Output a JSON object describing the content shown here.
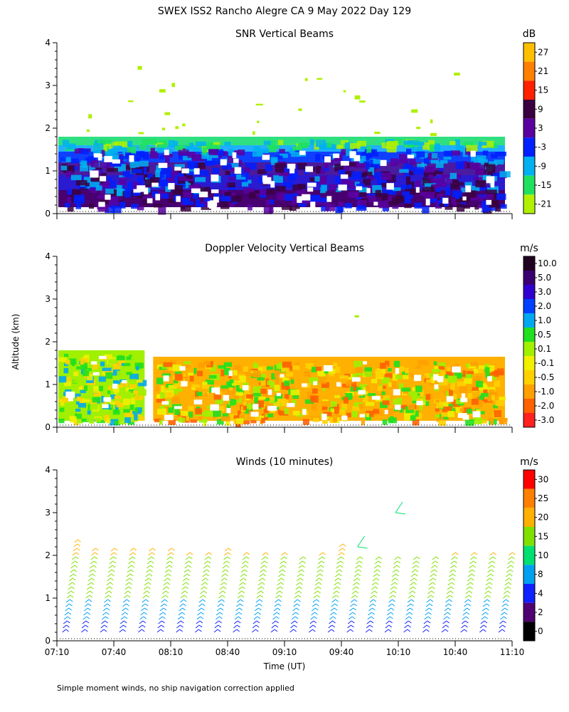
{
  "title": "SWEX ISS2 Rancho Alegre CA   9 May 2022 Day 129",
  "y_axis_label": "Altitude (km)",
  "x_axis_label": "Time (UT)",
  "footnote": "Simple moment winds, no ship navigation correction applied",
  "time_ticks": [
    "07:10",
    "07:40",
    "08:10",
    "08:40",
    "09:10",
    "09:40",
    "10:10",
    "10:40",
    "11:10"
  ],
  "chart_data": [
    {
      "type": "heatmap",
      "title": "SNR Vertical Beams",
      "units": "dB",
      "xlabel": "Time (UT)",
      "ylabel": "Altitude (km)",
      "xlim": [
        "07:10",
        "11:10"
      ],
      "ylim": [
        0,
        4
      ],
      "yticks": [
        "0",
        "1",
        "2",
        "3",
        "4"
      ],
      "colorbar": {
        "labels": [
          "27",
          "21",
          "15",
          "9",
          "3",
          "-3",
          "-9",
          "-15",
          "-21"
        ],
        "colors": [
          "#ffbf00",
          "#ff8000",
          "#ff2000",
          "#3a0040",
          "#5a00a0",
          "#0020ff",
          "#00b0f0",
          "#20e060",
          "#b0f000"
        ]
      },
      "layers": [
        {
          "altitude_km": [
            0.15,
            0.55
          ],
          "value_db": 9,
          "color": "#480070"
        },
        {
          "altitude_km": [
            0.55,
            0.9
          ],
          "value_db": 3,
          "color": "#2a1ad0"
        },
        {
          "altitude_km": [
            0.9,
            1.2
          ],
          "value_db": 3,
          "color": "#4a1aa0"
        },
        {
          "altitude_km": [
            1.2,
            1.45
          ],
          "value_db": -3,
          "color": "#1040ff"
        },
        {
          "altitude_km": [
            1.45,
            1.6
          ],
          "value_db": -9,
          "color": "#20b0ff"
        },
        {
          "altitude_km": [
            1.6,
            1.8
          ],
          "value_db": -15,
          "color": "#30e080"
        }
      ],
      "speckles_above_km": [
        1.8,
        3.5
      ]
    },
    {
      "type": "heatmap",
      "title": "Doppler Velocity Vertical Beams",
      "units": "m/s",
      "xlabel": "Time (UT)",
      "ylabel": "Altitude (km)",
      "xlim": [
        "07:10",
        "11:10"
      ],
      "ylim": [
        0,
        4
      ],
      "yticks": [
        "0",
        "1",
        "2",
        "3",
        "4"
      ],
      "colorbar": {
        "labels": [
          "10.0",
          "5.0",
          "3.0",
          "2.0",
          "1.0",
          "0.5",
          "0.1",
          "-0.1",
          "-0.5",
          "-1.0",
          "-2.0",
          "-3.0"
        ],
        "colors": [
          "#200020",
          "#3a0070",
          "#3000d0",
          "#0040ff",
          "#00a8f0",
          "#20e020",
          "#a0f000",
          "#f0f000",
          "#ffd000",
          "#ffa000",
          "#ff6000",
          "#ff2020"
        ]
      },
      "regions": [
        {
          "time": [
            "07:10",
            "08:00"
          ],
          "altitude_km": [
            0.15,
            1.8
          ],
          "dominant_value": 0.1,
          "color": "#a0f000"
        },
        {
          "time": [
            "08:00",
            "11:10"
          ],
          "altitude_km": [
            0.15,
            1.65
          ],
          "dominant_value": -0.5,
          "color": "#ffb000"
        }
      ]
    },
    {
      "type": "wind_barbs",
      "title": "Winds (10 minutes)",
      "units": "m/s",
      "xlabel": "Time (UT)",
      "ylabel": "Altitude (km)",
      "xlim": [
        "07:10",
        "11:10"
      ],
      "ylim": [
        0,
        4
      ],
      "yticks": [
        "0",
        "1",
        "2",
        "3",
        "4"
      ],
      "interval_minutes": 10,
      "profile_count": 24,
      "colorbar": {
        "labels": [
          "30",
          "25",
          "20",
          "15",
          "10",
          "8",
          "4",
          "2",
          "0"
        ],
        "colors": [
          "#ff0000",
          "#ff8000",
          "#ffb000",
          "#80e000",
          "#00e070",
          "#00a0f0",
          "#1020ff",
          "#500070",
          "#000000"
        ]
      },
      "profile_tops_km": [
        2.4,
        2.2,
        2.2,
        2.2,
        2.2,
        2.2,
        2.1,
        2.1,
        2.2,
        2.1,
        2.1,
        2.1,
        2.0,
        2.1,
        2.3,
        2.0,
        2.0,
        2.0,
        2.0,
        2.0,
        2.1,
        2.1,
        2.1,
        2.1
      ],
      "speed_by_altitude": [
        {
          "altitude_km": [
            0.2,
            0.5
          ],
          "speed_ms": 4
        },
        {
          "altitude_km": [
            0.5,
            0.9
          ],
          "speed_ms": 8
        },
        {
          "altitude_km": [
            0.9,
            2.0
          ],
          "speed_ms": 15
        },
        {
          "altitude_km": [
            2.0,
            2.4
          ],
          "speed_ms": 20
        }
      ],
      "isolated_barbs": [
        {
          "time": "09:50",
          "altitude_km": 2.2,
          "speed_ms": 15
        },
        {
          "time": "10:10",
          "altitude_km": 3.0,
          "speed_ms": 15
        }
      ]
    }
  ]
}
